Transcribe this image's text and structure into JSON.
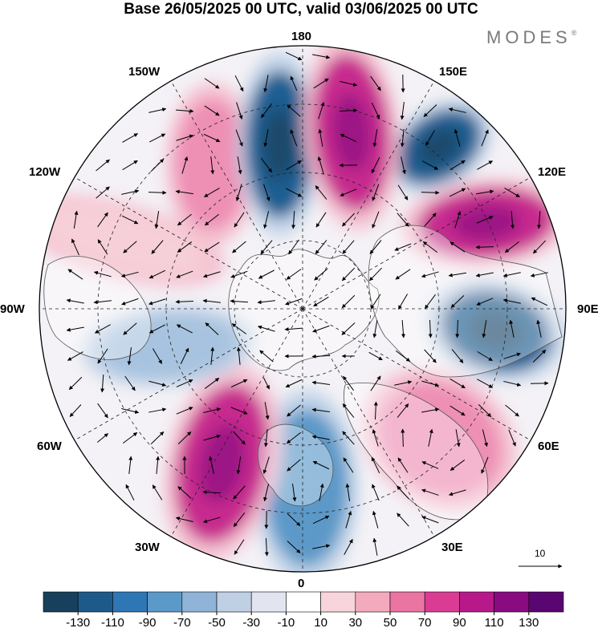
{
  "title": "Base 26/05/2025 00 UTC, valid 03/06/2025 00 UTC",
  "brand": {
    "name": "MODES",
    "mark": "®"
  },
  "map": {
    "projection": "north polar stereographic",
    "meridian_labels": {
      "top": "180",
      "top_left": "150W",
      "top_right": "150E",
      "upper_left": "120W",
      "upper_right": "120E",
      "left": "90W",
      "right": "90E",
      "lower_left": "60W",
      "lower_right": "60E",
      "bottom_left": "30W",
      "bottom_right": "30E",
      "bottom": "0"
    },
    "anomaly_centers": [
      {
        "sign": "negative",
        "direction": "ENE",
        "strength": "strong"
      },
      {
        "sign": "positive",
        "direction": "E",
        "strength": "strong"
      },
      {
        "sign": "negative",
        "direction": "ESE",
        "strength": "strong"
      },
      {
        "sign": "positive",
        "direction": "SE",
        "strength": "moderate"
      },
      {
        "sign": "negative",
        "direction": "S",
        "strength": "moderate"
      },
      {
        "sign": "positive",
        "direction": "SW",
        "strength": "strong"
      },
      {
        "sign": "negative",
        "direction": "W",
        "strength": "weak"
      },
      {
        "sign": "positive",
        "direction": "WNW",
        "strength": "weak"
      },
      {
        "sign": "positive",
        "direction": "NW",
        "strength": "moderate"
      },
      {
        "sign": "negative",
        "direction": "NNW",
        "strength": "strong"
      },
      {
        "sign": "positive",
        "direction": "N",
        "strength": "strong"
      }
    ]
  },
  "wind_reference": {
    "value": "10"
  },
  "colorbar": {
    "labels": [
      "-130",
      "-110",
      "-90",
      "-70",
      "-50",
      "-30",
      "-10",
      "10",
      "30",
      "50",
      "70",
      "90",
      "110",
      "130"
    ],
    "colors": [
      "#183f5c",
      "#1d5a8a",
      "#2f76b4",
      "#5b99c8",
      "#8fb4d8",
      "#bfcfe4",
      "#e2e4f0",
      "#ffffff",
      "#f8d5dc",
      "#f2aabc",
      "#ea74a2",
      "#da3c94",
      "#b8198a",
      "#8a0a82",
      "#5a0672"
    ]
  }
}
